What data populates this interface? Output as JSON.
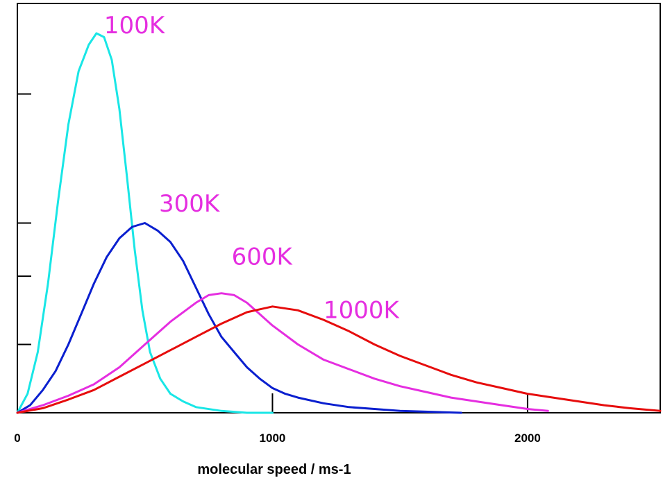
{
  "chart_data": {
    "type": "line",
    "title": "",
    "xlabel": "molecular speed / ms-1",
    "ylabel": "",
    "xlim": [
      0,
      2520
    ],
    "ylim": [
      0,
      1.0
    ],
    "x_ticks": [
      0,
      1000,
      2000
    ],
    "x_tick_labels": [
      "0",
      "1000",
      "2000"
    ],
    "y_ticks": [
      0.18,
      0.36,
      0.5,
      0.84
    ],
    "y_tick_labels": [],
    "grid": false,
    "legend": "none",
    "series": [
      {
        "name": "100K",
        "color": "#19e6e6",
        "points": [
          [
            0,
            0
          ],
          [
            40,
            0.05
          ],
          [
            80,
            0.16
          ],
          [
            120,
            0.34
          ],
          [
            160,
            0.56
          ],
          [
            200,
            0.76
          ],
          [
            240,
            0.9
          ],
          [
            280,
            0.97
          ],
          [
            310,
            1.0
          ],
          [
            340,
            0.99
          ],
          [
            370,
            0.93
          ],
          [
            400,
            0.8
          ],
          [
            430,
            0.62
          ],
          [
            460,
            0.43
          ],
          [
            490,
            0.27
          ],
          [
            520,
            0.16
          ],
          [
            560,
            0.09
          ],
          [
            600,
            0.05
          ],
          [
            650,
            0.03
          ],
          [
            700,
            0.015
          ],
          [
            800,
            0.005
          ],
          [
            900,
            0.0
          ],
          [
            1000,
            0.0
          ]
        ]
      },
      {
        "name": "300K",
        "color": "#0a1fcf",
        "points": [
          [
            0,
            0
          ],
          [
            50,
            0.02
          ],
          [
            100,
            0.06
          ],
          [
            150,
            0.11
          ],
          [
            200,
            0.18
          ],
          [
            250,
            0.26
          ],
          [
            300,
            0.34
          ],
          [
            350,
            0.41
          ],
          [
            400,
            0.46
          ],
          [
            450,
            0.49
          ],
          [
            500,
            0.5
          ],
          [
            550,
            0.48
          ],
          [
            600,
            0.45
          ],
          [
            650,
            0.4
          ],
          [
            700,
            0.33
          ],
          [
            750,
            0.26
          ],
          [
            800,
            0.2
          ],
          [
            850,
            0.16
          ],
          [
            900,
            0.12
          ],
          [
            950,
            0.09
          ],
          [
            1000,
            0.065
          ],
          [
            1050,
            0.05
          ],
          [
            1100,
            0.04
          ],
          [
            1200,
            0.025
          ],
          [
            1300,
            0.015
          ],
          [
            1400,
            0.01
          ],
          [
            1500,
            0.005
          ],
          [
            1600,
            0.003
          ],
          [
            1740,
            0.0
          ]
        ]
      },
      {
        "name": "600K",
        "color": "#e52ee0",
        "points": [
          [
            0,
            0
          ],
          [
            100,
            0.02
          ],
          [
            200,
            0.045
          ],
          [
            300,
            0.075
          ],
          [
            400,
            0.12
          ],
          [
            500,
            0.18
          ],
          [
            600,
            0.24
          ],
          [
            700,
            0.29
          ],
          [
            750,
            0.31
          ],
          [
            800,
            0.315
          ],
          [
            850,
            0.31
          ],
          [
            900,
            0.29
          ],
          [
            950,
            0.26
          ],
          [
            1000,
            0.23
          ],
          [
            1100,
            0.18
          ],
          [
            1200,
            0.14
          ],
          [
            1300,
            0.115
          ],
          [
            1400,
            0.09
          ],
          [
            1500,
            0.07
          ],
          [
            1600,
            0.055
          ],
          [
            1700,
            0.04
          ],
          [
            1800,
            0.03
          ],
          [
            1900,
            0.02
          ],
          [
            2000,
            0.01
          ],
          [
            2080,
            0.005
          ]
        ]
      },
      {
        "name": "1000K",
        "color": "#e60d0d",
        "points": [
          [
            0,
            0
          ],
          [
            100,
            0.012
          ],
          [
            200,
            0.035
          ],
          [
            300,
            0.06
          ],
          [
            400,
            0.095
          ],
          [
            500,
            0.13
          ],
          [
            600,
            0.165
          ],
          [
            700,
            0.2
          ],
          [
            800,
            0.235
          ],
          [
            900,
            0.265
          ],
          [
            1000,
            0.28
          ],
          [
            1100,
            0.27
          ],
          [
            1200,
            0.245
          ],
          [
            1300,
            0.215
          ],
          [
            1400,
            0.18
          ],
          [
            1500,
            0.15
          ],
          [
            1600,
            0.125
          ],
          [
            1700,
            0.1
          ],
          [
            1800,
            0.08
          ],
          [
            1900,
            0.065
          ],
          [
            2000,
            0.05
          ],
          [
            2100,
            0.04
          ],
          [
            2200,
            0.03
          ],
          [
            2300,
            0.02
          ],
          [
            2400,
            0.012
          ],
          [
            2520,
            0.005
          ]
        ]
      }
    ],
    "annotations": [
      {
        "text": "100K",
        "x": 340,
        "y": 1.0,
        "color": "#e52ee0"
      },
      {
        "text": "300K",
        "x": 555,
        "y": 0.53,
        "color": "#e52ee0"
      },
      {
        "text": "600K",
        "x": 840,
        "y": 0.39,
        "color": "#e52ee0"
      },
      {
        "text": "1000K",
        "x": 1200,
        "y": 0.25,
        "color": "#e52ee0"
      }
    ]
  }
}
